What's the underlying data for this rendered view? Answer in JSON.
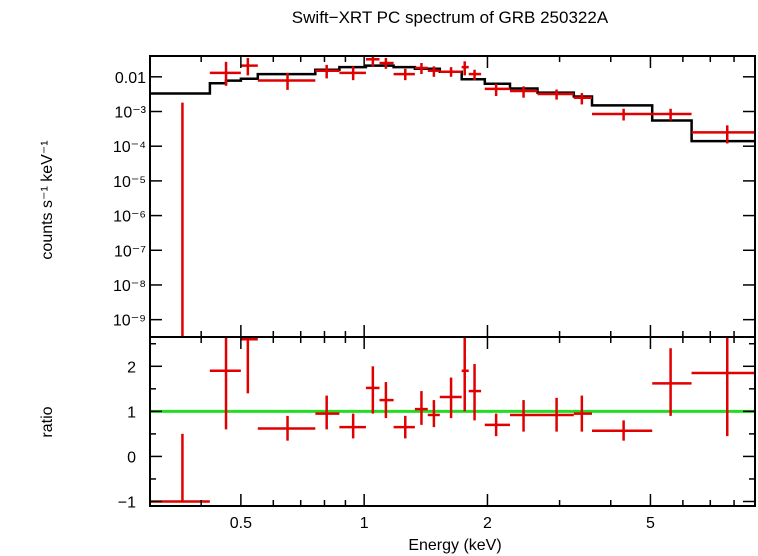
{
  "chart_data": [
    {
      "type": "line",
      "panel": "spectrum",
      "title": "Swift−XRT PC spectrum of GRB 250322A",
      "ylabel": "counts s⁻¹ keV⁻¹",
      "xscale": "log",
      "yscale": "log",
      "xlim": [
        0.3,
        9.0
      ],
      "ylim_log10": [
        -9.5,
        -1.4
      ],
      "yticks": [
        {
          "value": 0.01,
          "label": "0.01"
        },
        {
          "value": 0.001,
          "label": "10⁻³"
        },
        {
          "value": 0.0001,
          "label": "10⁻⁴"
        },
        {
          "value": 1e-05,
          "label": "10⁻⁵"
        },
        {
          "value": 1e-06,
          "label": "10⁻⁶"
        },
        {
          "value": 1e-07,
          "label": "10⁻⁷"
        },
        {
          "value": 1e-08,
          "label": "10⁻⁸"
        },
        {
          "value": 1e-09,
          "label": "10⁻⁹"
        }
      ],
      "data_points": [
        {
          "x": 0.36,
          "xlo": 0.36,
          "xhi": 0.36,
          "y": 1e-10,
          "ylo": 1e-10,
          "yhi": 0.0018
        },
        {
          "x": 0.46,
          "xlo": 0.42,
          "xhi": 0.5,
          "y": 0.013,
          "ylo": 0.0055,
          "yhi": 0.027
        },
        {
          "x": 0.52,
          "xlo": 0.5,
          "xhi": 0.55,
          "y": 0.021,
          "ylo": 0.011,
          "yhi": 0.035
        },
        {
          "x": 0.65,
          "xlo": 0.55,
          "xhi": 0.76,
          "y": 0.0078,
          "ylo": 0.0042,
          "yhi": 0.013
        },
        {
          "x": 0.81,
          "xlo": 0.76,
          "xhi": 0.87,
          "y": 0.015,
          "ylo": 0.009,
          "yhi": 0.022
        },
        {
          "x": 0.94,
          "xlo": 0.87,
          "xhi": 1.01,
          "y": 0.013,
          "ylo": 0.008,
          "yhi": 0.02
        },
        {
          "x": 1.05,
          "xlo": 1.01,
          "xhi": 1.09,
          "y": 0.032,
          "ylo": 0.02,
          "yhi": 0.045
        },
        {
          "x": 1.13,
          "xlo": 1.09,
          "xhi": 1.18,
          "y": 0.025,
          "ylo": 0.017,
          "yhi": 0.035
        },
        {
          "x": 1.26,
          "xlo": 1.18,
          "xhi": 1.33,
          "y": 0.012,
          "ylo": 0.008,
          "yhi": 0.017
        },
        {
          "x": 1.38,
          "xlo": 1.33,
          "xhi": 1.43,
          "y": 0.018,
          "ylo": 0.012,
          "yhi": 0.025
        },
        {
          "x": 1.48,
          "xlo": 1.43,
          "xhi": 1.53,
          "y": 0.015,
          "ylo": 0.01,
          "yhi": 0.02
        },
        {
          "x": 1.63,
          "xlo": 1.53,
          "xhi": 1.73,
          "y": 0.014,
          "ylo": 0.01,
          "yhi": 0.019
        },
        {
          "x": 1.76,
          "xlo": 1.73,
          "xhi": 1.8,
          "y": 0.019,
          "ylo": 0.011,
          "yhi": 0.028
        },
        {
          "x": 1.86,
          "xlo": 1.8,
          "xhi": 1.93,
          "y": 0.012,
          "ylo": 0.008,
          "yhi": 0.016
        },
        {
          "x": 2.1,
          "xlo": 1.97,
          "xhi": 2.27,
          "y": 0.0045,
          "ylo": 0.0028,
          "yhi": 0.0063
        },
        {
          "x": 2.45,
          "xlo": 2.27,
          "xhi": 2.65,
          "y": 0.0039,
          "ylo": 0.0025,
          "yhi": 0.0053
        },
        {
          "x": 2.95,
          "xlo": 2.65,
          "xhi": 3.25,
          "y": 0.0032,
          "ylo": 0.0022,
          "yhi": 0.0043
        },
        {
          "x": 3.4,
          "xlo": 3.25,
          "xhi": 3.6,
          "y": 0.0025,
          "ylo": 0.0016,
          "yhi": 0.0034
        },
        {
          "x": 4.3,
          "xlo": 3.6,
          "xhi": 5.05,
          "y": 0.00085,
          "ylo": 0.00055,
          "yhi": 0.0012
        },
        {
          "x": 5.6,
          "xlo": 5.05,
          "xhi": 6.3,
          "y": 0.00085,
          "ylo": 0.00055,
          "yhi": 0.0012
        },
        {
          "x": 7.7,
          "xlo": 6.3,
          "xhi": 9.0,
          "y": 0.00025,
          "ylo": 0.00012,
          "yhi": 0.0004
        }
      ],
      "model_steps": [
        {
          "xlo": 0.3,
          "xhi": 0.42,
          "y": 0.0033
        },
        {
          "xlo": 0.42,
          "xhi": 0.46,
          "y": 0.0065
        },
        {
          "xlo": 0.46,
          "xhi": 0.5,
          "y": 0.0078
        },
        {
          "xlo": 0.5,
          "xhi": 0.55,
          "y": 0.0088
        },
        {
          "xlo": 0.55,
          "xhi": 0.76,
          "y": 0.012
        },
        {
          "xlo": 0.76,
          "xhi": 0.87,
          "y": 0.016
        },
        {
          "xlo": 0.87,
          "xhi": 1.01,
          "y": 0.019
        },
        {
          "xlo": 1.01,
          "xhi": 1.18,
          "y": 0.021
        },
        {
          "xlo": 1.18,
          "xhi": 1.33,
          "y": 0.019
        },
        {
          "xlo": 1.33,
          "xhi": 1.53,
          "y": 0.017
        },
        {
          "xlo": 1.53,
          "xhi": 1.73,
          "y": 0.014
        },
        {
          "xlo": 1.73,
          "xhi": 1.97,
          "y": 0.0085
        },
        {
          "xlo": 1.97,
          "xhi": 2.27,
          "y": 0.0063
        },
        {
          "xlo": 2.27,
          "xhi": 2.65,
          "y": 0.0046
        },
        {
          "xlo": 2.65,
          "xhi": 3.25,
          "y": 0.0035
        },
        {
          "xlo": 3.25,
          "xhi": 3.6,
          "y": 0.0027
        },
        {
          "xlo": 3.6,
          "xhi": 5.05,
          "y": 0.0015
        },
        {
          "xlo": 5.05,
          "xhi": 6.3,
          "y": 0.00055
        },
        {
          "xlo": 6.3,
          "xhi": 9.0,
          "y": 0.00014
        }
      ],
      "colors": {
        "data": "#e00000",
        "model": "#000000"
      }
    },
    {
      "type": "scatter",
      "panel": "ratio",
      "xlabel": "Energy (keV)",
      "ylabel": "ratio",
      "xscale": "log",
      "xlim": [
        0.3,
        9.0
      ],
      "ylim": [
        -1.1,
        2.65
      ],
      "yticks": [
        {
          "value": -1,
          "label": "−1"
        },
        {
          "value": 0,
          "label": "0"
        },
        {
          "value": 1,
          "label": "1"
        },
        {
          "value": 2,
          "label": "2"
        }
      ],
      "xticks": [
        {
          "value": 0.5,
          "label": "0.5"
        },
        {
          "value": 1,
          "label": "1"
        },
        {
          "value": 2,
          "label": "2"
        },
        {
          "value": 5,
          "label": "5"
        }
      ],
      "reference_line": {
        "y": 1,
        "color": "#22dd22"
      },
      "data_points": [
        {
          "x": 0.36,
          "xlo": 0.3,
          "xhi": 0.42,
          "y": -1.0,
          "ylo": -1.0,
          "yhi": 0.5
        },
        {
          "x": 0.46,
          "xlo": 0.42,
          "xhi": 0.5,
          "y": 1.9,
          "ylo": 0.6,
          "yhi": 2.7
        },
        {
          "x": 0.52,
          "xlo": 0.5,
          "xhi": 0.55,
          "y": 2.6,
          "ylo": 1.4,
          "yhi": 2.7
        },
        {
          "x": 0.65,
          "xlo": 0.55,
          "xhi": 0.76,
          "y": 0.62,
          "ylo": 0.35,
          "yhi": 0.9
        },
        {
          "x": 0.81,
          "xlo": 0.76,
          "xhi": 0.87,
          "y": 0.95,
          "ylo": 0.6,
          "yhi": 1.35
        },
        {
          "x": 0.94,
          "xlo": 0.87,
          "xhi": 1.01,
          "y": 0.65,
          "ylo": 0.4,
          "yhi": 0.95
        },
        {
          "x": 1.05,
          "xlo": 1.01,
          "xhi": 1.09,
          "y": 1.52,
          "ylo": 0.95,
          "yhi": 2.0
        },
        {
          "x": 1.13,
          "xlo": 1.09,
          "xhi": 1.18,
          "y": 1.25,
          "ylo": 0.85,
          "yhi": 1.65
        },
        {
          "x": 1.26,
          "xlo": 1.18,
          "xhi": 1.33,
          "y": 0.65,
          "ylo": 0.4,
          "yhi": 0.9
        },
        {
          "x": 1.38,
          "xlo": 1.33,
          "xhi": 1.43,
          "y": 1.05,
          "ylo": 0.7,
          "yhi": 1.45
        },
        {
          "x": 1.48,
          "xlo": 1.43,
          "xhi": 1.53,
          "y": 0.92,
          "ylo": 0.65,
          "yhi": 1.25
        },
        {
          "x": 1.63,
          "xlo": 1.53,
          "xhi": 1.73,
          "y": 1.32,
          "ylo": 0.85,
          "yhi": 1.75
        },
        {
          "x": 1.76,
          "xlo": 1.73,
          "xhi": 1.8,
          "y": 1.9,
          "ylo": 1.0,
          "yhi": 2.75
        },
        {
          "x": 1.86,
          "xlo": 1.8,
          "xhi": 1.93,
          "y": 1.45,
          "ylo": 0.8,
          "yhi": 2.05
        },
        {
          "x": 2.1,
          "xlo": 1.97,
          "xhi": 2.27,
          "y": 0.7,
          "ylo": 0.45,
          "yhi": 0.95
        },
        {
          "x": 2.45,
          "xlo": 2.27,
          "xhi": 2.65,
          "y": 0.92,
          "ylo": 0.55,
          "yhi": 1.25
        },
        {
          "x": 2.95,
          "xlo": 2.65,
          "xhi": 3.25,
          "y": 0.92,
          "ylo": 0.55,
          "yhi": 1.3
        },
        {
          "x": 3.4,
          "xlo": 3.25,
          "xhi": 3.6,
          "y": 0.95,
          "ylo": 0.55,
          "yhi": 1.35
        },
        {
          "x": 4.3,
          "xlo": 3.6,
          "xhi": 5.05,
          "y": 0.57,
          "ylo": 0.35,
          "yhi": 0.8
        },
        {
          "x": 5.6,
          "xlo": 5.05,
          "xhi": 6.3,
          "y": 1.62,
          "ylo": 0.9,
          "yhi": 2.4
        },
        {
          "x": 7.7,
          "xlo": 6.3,
          "xhi": 9.0,
          "y": 1.85,
          "ylo": 0.45,
          "yhi": 2.7
        }
      ]
    }
  ]
}
